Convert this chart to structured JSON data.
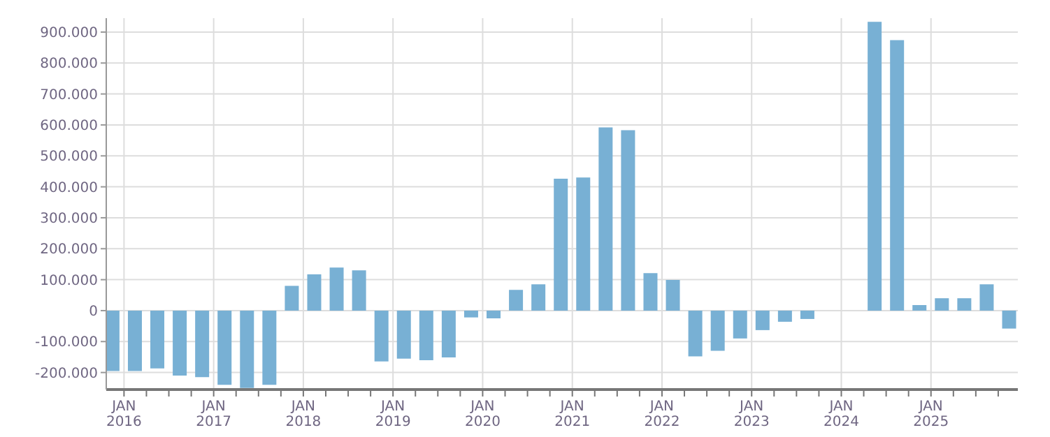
{
  "chart_data": {
    "type": "bar",
    "x": [
      "2015-11-15",
      "2016-02-15",
      "2016-05-15",
      "2016-08-15",
      "2016-11-15",
      "2017-02-15",
      "2017-05-15",
      "2017-08-15",
      "2017-11-15",
      "2018-02-15",
      "2018-05-15",
      "2018-08-15",
      "2018-11-15",
      "2019-02-15",
      "2019-05-15",
      "2019-08-15",
      "2019-11-15",
      "2020-02-15",
      "2020-05-15",
      "2020-08-15",
      "2020-11-15",
      "2021-02-15",
      "2021-05-15",
      "2021-08-15",
      "2021-11-15",
      "2022-02-15",
      "2022-05-15",
      "2022-08-15",
      "2022-11-15",
      "2023-02-15",
      "2023-05-15",
      "2023-08-15",
      "2023-11-15",
      "2024-02-15",
      "2024-05-15",
      "2024-08-15",
      "2024-11-15",
      "2025-02-15",
      "2025-05-15",
      "2025-08-15",
      "2025-11-15"
    ],
    "values": [
      -195000,
      -195000,
      -187000,
      -210000,
      -215000,
      -240000,
      -250000,
      -240000,
      80000,
      117000,
      139000,
      130000,
      -164000,
      -155000,
      -160000,
      -151000,
      -22000,
      -25000,
      67000,
      85000,
      426000,
      430000,
      592000,
      583000,
      121000,
      99000,
      -148000,
      -130000,
      -90000,
      -63000,
      -36000,
      -27000,
      null,
      null,
      933000,
      874000,
      18000,
      40000,
      40000,
      85000,
      -58000
    ],
    "color": "#78b0d4",
    "xlim": [
      "2015-10-20",
      "2025-12-20"
    ],
    "xticks": [
      {
        "value": "2016-01-01",
        "label": "JAN\n2016"
      },
      {
        "value": "2016-04-01",
        "label": null
      },
      {
        "value": "2016-07-01",
        "label": null
      },
      {
        "value": "2016-10-01",
        "label": null
      },
      {
        "value": "2017-01-01",
        "label": "JAN\n2017"
      },
      {
        "value": "2017-04-01",
        "label": null
      },
      {
        "value": "2017-07-01",
        "label": null
      },
      {
        "value": "2017-10-01",
        "label": null
      },
      {
        "value": "2018-01-01",
        "label": "JAN\n2018"
      },
      {
        "value": "2018-04-01",
        "label": null
      },
      {
        "value": "2018-07-01",
        "label": null
      },
      {
        "value": "2018-10-01",
        "label": null
      },
      {
        "value": "2019-01-01",
        "label": "JAN\n2019"
      },
      {
        "value": "2019-04-01",
        "label": null
      },
      {
        "value": "2019-07-01",
        "label": null
      },
      {
        "value": "2019-10-01",
        "label": null
      },
      {
        "value": "2020-01-01",
        "label": "JAN\n2020"
      },
      {
        "value": "2020-04-01",
        "label": null
      },
      {
        "value": "2020-07-01",
        "label": null
      },
      {
        "value": "2020-10-01",
        "label": null
      },
      {
        "value": "2021-01-01",
        "label": "JAN\n2021"
      },
      {
        "value": "2021-04-01",
        "label": null
      },
      {
        "value": "2021-07-01",
        "label": null
      },
      {
        "value": "2021-10-01",
        "label": null
      },
      {
        "value": "2022-01-01",
        "label": "JAN\n2022"
      },
      {
        "value": "2022-04-01",
        "label": null
      },
      {
        "value": "2022-07-01",
        "label": null
      },
      {
        "value": "2022-10-01",
        "label": null
      },
      {
        "value": "2023-01-01",
        "label": "JAN\n2023"
      },
      {
        "value": "2023-04-01",
        "label": null
      },
      {
        "value": "2023-07-01",
        "label": null
      },
      {
        "value": "2023-10-01",
        "label": null
      },
      {
        "value": "2024-01-01",
        "label": "JAN\n2024"
      },
      {
        "value": "2024-04-01",
        "label": null
      },
      {
        "value": "2024-07-01",
        "label": null
      },
      {
        "value": "2024-10-01",
        "label": null
      },
      {
        "value": "2025-01-01",
        "label": "JAN\n2025"
      },
      {
        "value": "2025-04-01",
        "label": null
      },
      {
        "value": "2025-07-01",
        "label": null
      },
      {
        "value": "2025-10-01",
        "label": null
      }
    ],
    "ylim": [
      -255000,
      945000
    ],
    "yticks": [
      {
        "value": -200000,
        "label": "-200.000"
      },
      {
        "value": -100000,
        "label": "-100.000"
      },
      0,
      {
        "value": 100000,
        "label": "100.000"
      },
      {
        "value": 200000,
        "label": "200.000"
      },
      {
        "value": 300000,
        "label": "300.000"
      },
      {
        "value": 400000,
        "label": "400.000"
      },
      {
        "value": 500000,
        "label": "500.000"
      },
      {
        "value": 600000,
        "label": "600.000"
      },
      {
        "value": 700000,
        "label": "700.000"
      },
      {
        "value": 800000,
        "label": "800.000"
      },
      {
        "value": 900000,
        "label": "900.000"
      }
    ],
    "grid": true
  }
}
